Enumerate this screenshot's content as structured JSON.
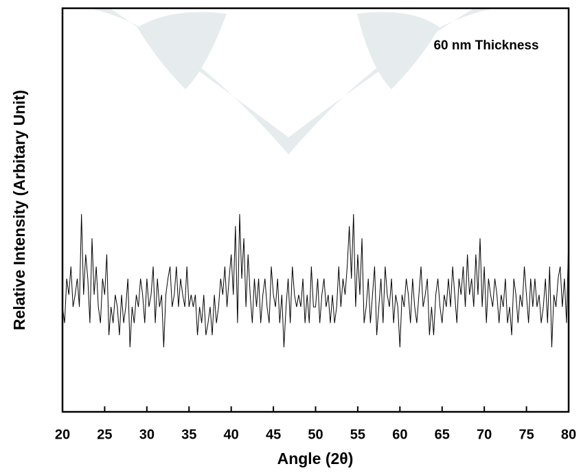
{
  "chart_data": {
    "type": "line",
    "ylabel": "Relative Intensity (Arbitary Unit)",
    "xlabel": "Angle (2θ)",
    "annotation": "60 nm Thickness",
    "xlim": [
      20,
      80
    ],
    "ylim": [
      0,
      100
    ],
    "xticks": [
      20,
      25,
      30,
      35,
      40,
      45,
      50,
      55,
      60,
      65,
      70,
      75,
      80
    ],
    "series": [
      {
        "color": "#000000",
        "x": [
          20,
          20.25,
          20.5,
          20.75,
          21,
          21.25,
          21.5,
          21.75,
          22,
          22.25,
          22.5,
          22.75,
          23,
          23.25,
          23.5,
          23.75,
          24,
          24.25,
          24.5,
          24.75,
          25,
          25.25,
          25.5,
          25.75,
          26,
          26.25,
          26.5,
          26.75,
          27,
          27.25,
          27.5,
          27.75,
          28,
          28.25,
          28.5,
          28.75,
          29,
          29.25,
          29.5,
          29.75,
          30,
          30.25,
          30.5,
          30.75,
          31,
          31.25,
          31.5,
          31.75,
          32,
          32.25,
          32.5,
          32.75,
          33,
          33.25,
          33.5,
          33.75,
          34,
          34.25,
          34.5,
          34.75,
          35,
          35.25,
          35.5,
          35.75,
          36,
          36.25,
          36.5,
          36.75,
          37,
          37.25,
          37.5,
          37.75,
          38,
          38.25,
          38.5,
          38.75,
          39,
          39.25,
          39.5,
          39.75,
          40,
          40.25,
          40.5,
          40.75,
          41,
          41.25,
          41.5,
          41.75,
          42,
          42.25,
          42.5,
          42.75,
          43,
          43.25,
          43.5,
          43.75,
          44,
          44.25,
          44.5,
          44.75,
          45,
          45.25,
          45.5,
          45.75,
          46,
          46.25,
          46.5,
          46.75,
          47,
          47.25,
          47.5,
          47.75,
          48,
          48.25,
          48.5,
          48.75,
          49,
          49.25,
          49.5,
          49.75,
          50,
          50.25,
          50.5,
          50.75,
          51,
          51.25,
          51.5,
          51.75,
          52,
          52.25,
          52.5,
          52.75,
          53,
          53.25,
          53.5,
          53.75,
          54,
          54.25,
          54.5,
          54.75,
          55,
          55.25,
          55.5,
          55.75,
          56,
          56.25,
          56.5,
          56.75,
          57,
          57.25,
          57.5,
          57.75,
          58,
          58.25,
          58.5,
          58.75,
          59,
          59.25,
          59.5,
          59.75,
          60,
          60.25,
          60.5,
          60.75,
          61,
          61.25,
          61.5,
          61.75,
          62,
          62.25,
          62.5,
          62.75,
          63,
          63.25,
          63.5,
          63.75,
          64,
          64.25,
          64.5,
          64.75,
          65,
          65.25,
          65.5,
          65.75,
          66,
          66.25,
          66.5,
          66.75,
          67,
          67.25,
          67.5,
          67.75,
          68,
          68.25,
          68.5,
          68.75,
          69,
          69.25,
          69.5,
          69.75,
          70,
          70.25,
          70.5,
          70.75,
          71,
          71.25,
          71.5,
          71.75,
          72,
          72.25,
          72.5,
          72.75,
          73,
          73.25,
          73.5,
          73.75,
          74,
          74.25,
          74.5,
          74.75,
          75,
          75.25,
          75.5,
          75.75,
          76,
          76.25,
          76.5,
          76.75,
          77,
          77.25,
          77.5,
          77.75,
          78,
          78.25,
          78.5,
          78.75,
          79,
          79.25,
          79.5,
          79.75,
          80
        ],
        "values": [
          26,
          22,
          33,
          29,
          36,
          26,
          29,
          33,
          26,
          49,
          29,
          39,
          33,
          22,
          43,
          29,
          36,
          26,
          22,
          33,
          29,
          39,
          19,
          26,
          22,
          29,
          26,
          19,
          29,
          22,
          26,
          33,
          16,
          26,
          22,
          29,
          26,
          33,
          29,
          22,
          33,
          26,
          29,
          36,
          22,
          33,
          26,
          29,
          16,
          29,
          33,
          36,
          26,
          29,
          36,
          26,
          33,
          29,
          26,
          36,
          26,
          29,
          26,
          29,
          19,
          26,
          22,
          29,
          19,
          22,
          26,
          19,
          29,
          22,
          26,
          33,
          29,
          36,
          26,
          33,
          39,
          29,
          46,
          22,
          49,
          33,
          43,
          26,
          39,
          29,
          22,
          33,
          26,
          33,
          22,
          29,
          33,
          26,
          22,
          36,
          29,
          26,
          33,
          22,
          29,
          16,
          26,
          33,
          22,
          36,
          29,
          26,
          29,
          26,
          33,
          22,
          29,
          22,
          36,
          26,
          26,
          33,
          22,
          29,
          33,
          26,
          29,
          22,
          29,
          22,
          26,
          36,
          26,
          33,
          29,
          36,
          46,
          33,
          49,
          26,
          39,
          29,
          43,
          22,
          26,
          33,
          22,
          29,
          36,
          19,
          26,
          33,
          22,
          36,
          29,
          26,
          33,
          22,
          29,
          26,
          16,
          29,
          26,
          33,
          29,
          22,
          33,
          26,
          22,
          29,
          36,
          26,
          29,
          33,
          19,
          26,
          19,
          29,
          33,
          26,
          22,
          29,
          26,
          33,
          26,
          36,
          29,
          22,
          33,
          29,
          36,
          26,
          39,
          29,
          33,
          26,
          39,
          29,
          43,
          26,
          36,
          22,
          33,
          29,
          26,
          33,
          29,
          22,
          29,
          26,
          33,
          22,
          26,
          19,
          33,
          29,
          22,
          29,
          26,
          36,
          29,
          22,
          33,
          26,
          33,
          26,
          29,
          22,
          26,
          33,
          22,
          36,
          16,
          29,
          26,
          33,
          36,
          26,
          33,
          22,
          43
        ]
      }
    ]
  }
}
